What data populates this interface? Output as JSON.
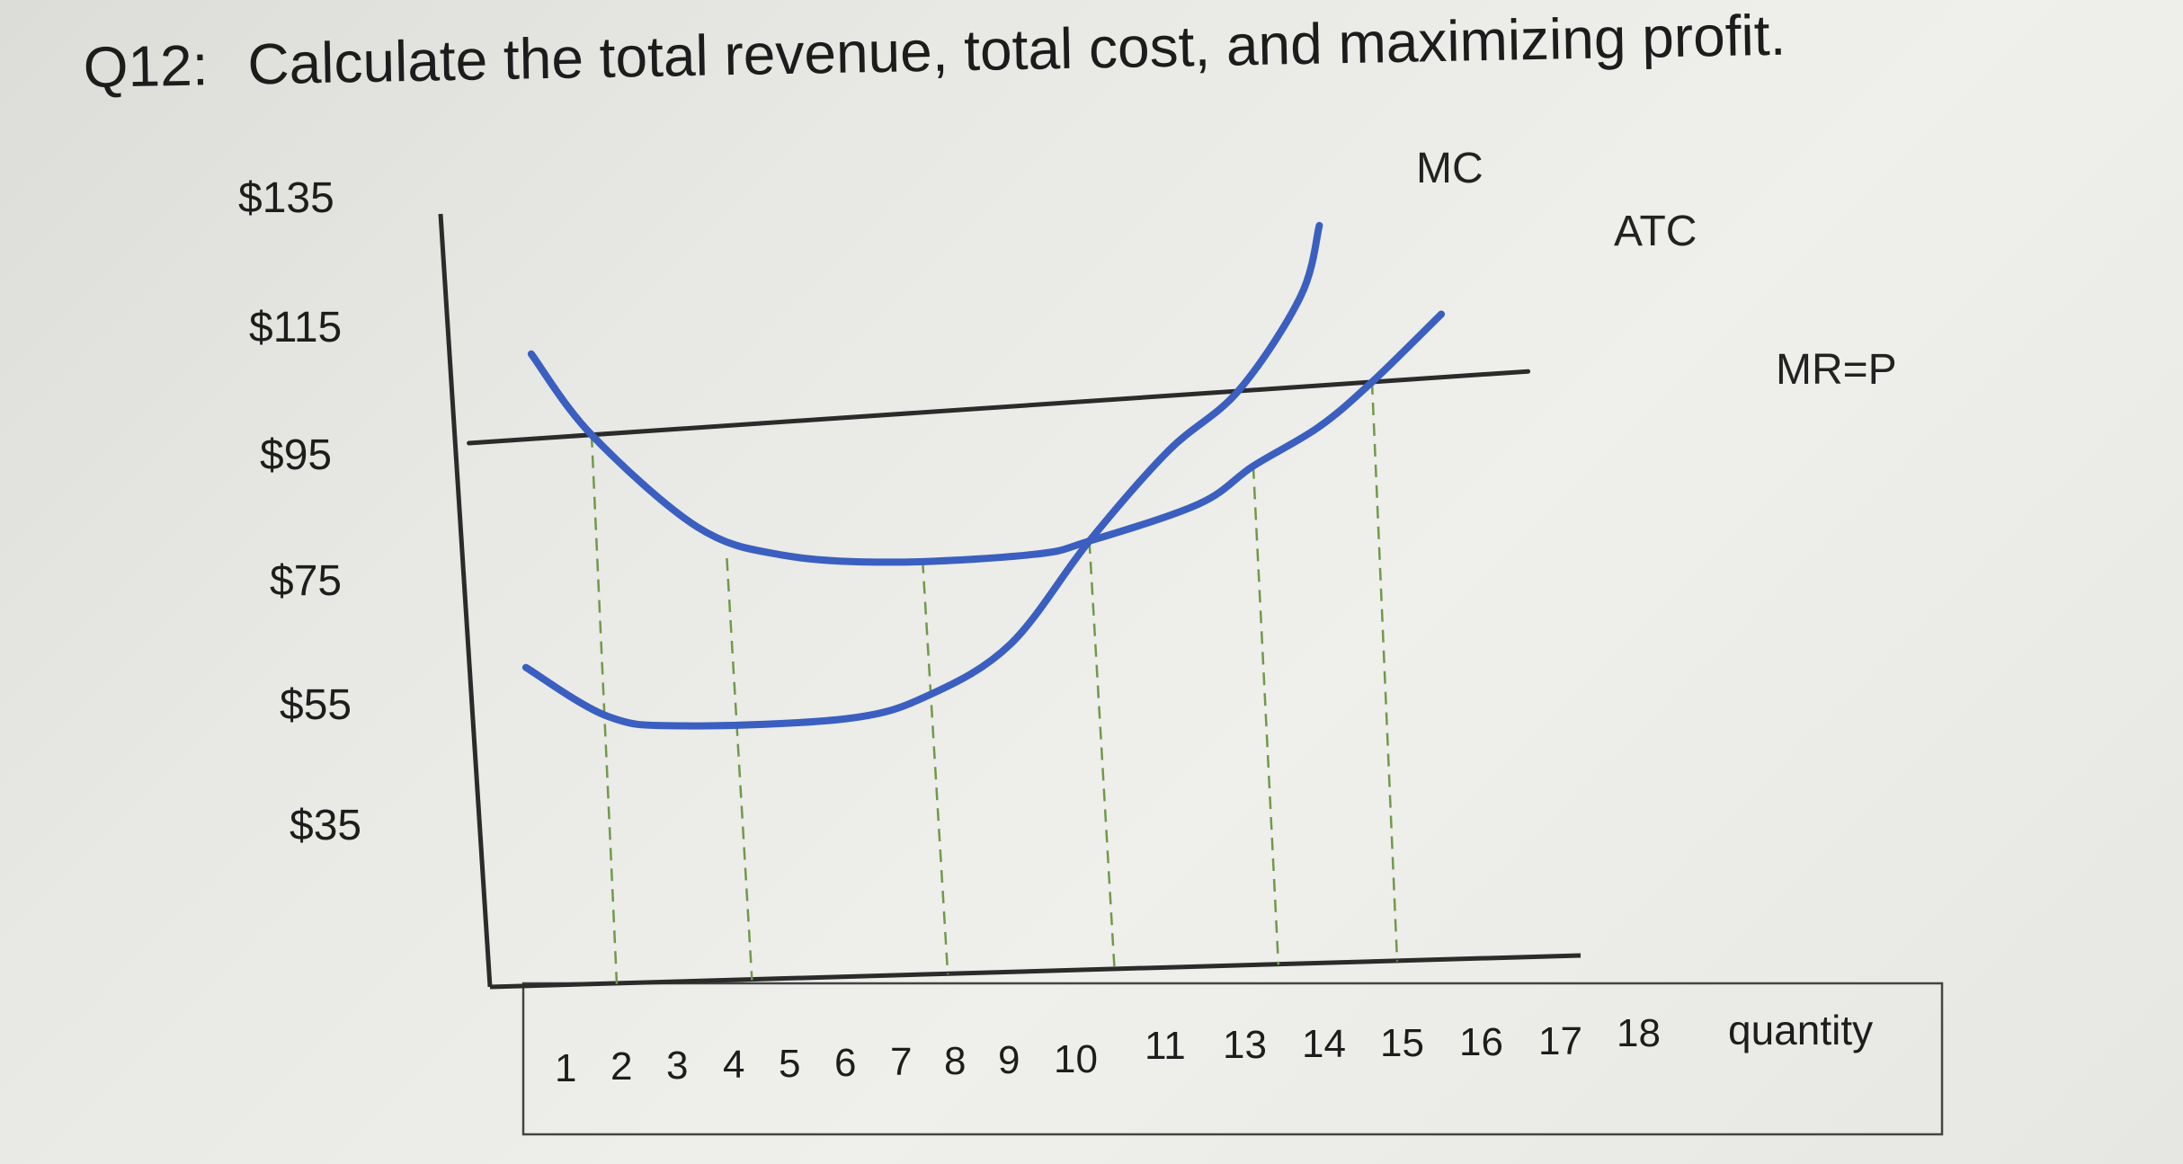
{
  "question": {
    "number": "Q12:",
    "text": "Calculate the total revenue, total cost, and maximizing profit."
  },
  "chart_data": {
    "type": "line",
    "title": "",
    "xlabel": "quantity",
    "ylabel": "",
    "y_tick_labels": [
      "$135",
      "$115",
      "$95",
      "$75",
      "$55",
      "$35"
    ],
    "x_tick_labels": [
      "1",
      "2",
      "3",
      "4",
      "5",
      "6",
      "7",
      "8",
      "9",
      "10",
      "11",
      "13",
      "14",
      "15",
      "16",
      "17",
      "18"
    ],
    "curve_labels": {
      "mc": "MC",
      "atc": "ATC",
      "mr": "MR=P"
    },
    "series": [
      {
        "name": "MR=P",
        "color": "#2b2b2b",
        "points": [
          [
            0,
            95
          ],
          [
            19,
            95
          ]
        ]
      },
      {
        "name": "ATC",
        "color": "#3a5fc0",
        "points": [
          [
            1.2,
            108
          ],
          [
            2.2,
            95
          ],
          [
            4,
            80
          ],
          [
            5.5,
            75
          ],
          [
            7.5,
            73
          ],
          [
            10,
            73
          ],
          [
            11,
            74.5
          ],
          [
            13,
            79
          ],
          [
            14,
            84
          ],
          [
            15.2,
            89
          ],
          [
            16.2,
            95
          ],
          [
            17.5,
            104
          ]
        ]
      },
      {
        "name": "MC",
        "color": "#3a5fc0",
        "points": [
          [
            0.8,
            60
          ],
          [
            2.2,
            52
          ],
          [
            3.5,
            50
          ],
          [
            6.5,
            50
          ],
          [
            8,
            53
          ],
          [
            9.5,
            60
          ],
          [
            11,
            74.5
          ],
          [
            12.5,
            87
          ],
          [
            13.8,
            95
          ],
          [
            15,
            108
          ],
          [
            15.4,
            118
          ]
        ]
      }
    ],
    "dashed_guides": [
      {
        "x": 2.2,
        "to_y": 95
      },
      {
        "x": 4.5,
        "to_y": 75
      },
      {
        "x": 8,
        "to_y": 73
      },
      {
        "x": 11,
        "to_y": 74.5
      },
      {
        "x": 14,
        "to_y": 84
      },
      {
        "x": 16.2,
        "to_y": 95
      }
    ],
    "grid": false,
    "legend": "none"
  }
}
